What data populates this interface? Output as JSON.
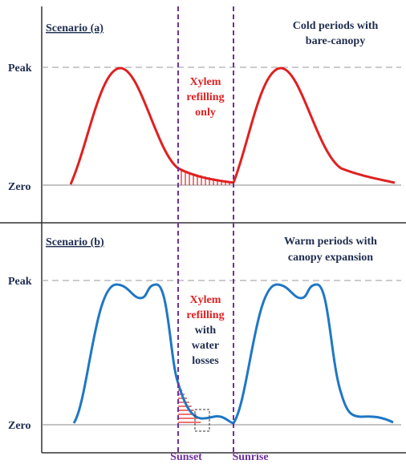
{
  "panel_a": {
    "label": "Scenario (a)",
    "condition": [
      "Cold periods with",
      "bare-canopy"
    ],
    "peak": "Peak",
    "zero": "Zero",
    "annotation": [
      "Xylem",
      "refilling",
      "only"
    ]
  },
  "panel_b": {
    "label": "Scenario (b)",
    "condition": [
      "Warm periods with",
      "canopy expansion"
    ],
    "peak": "Peak",
    "zero": "Zero",
    "annotation_red": [
      "Xylem",
      "refilling"
    ],
    "annotation_dark": [
      "with",
      "water",
      "losses"
    ]
  },
  "time_axis": {
    "sunset": "Sunset",
    "sunrise": "Sunrise"
  }
}
